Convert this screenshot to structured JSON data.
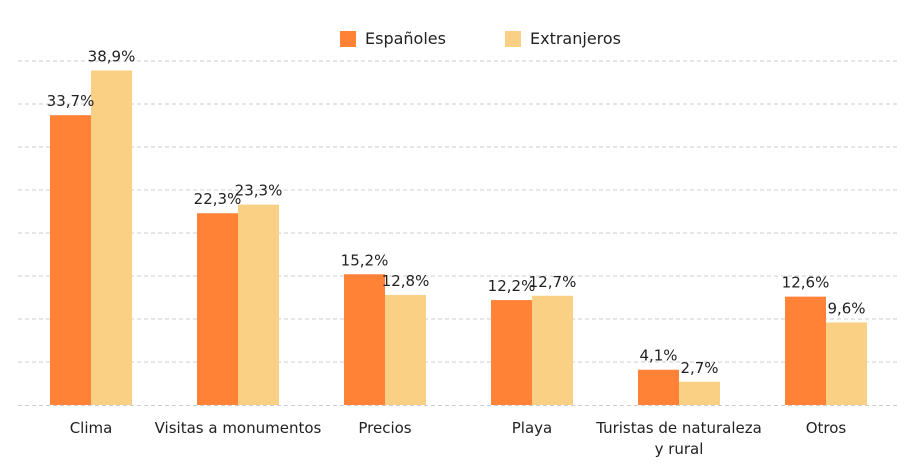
{
  "chart_data": {
    "type": "bar",
    "categories": [
      "Clima",
      "Visitas a monumentos",
      "Precios",
      "Playa",
      "Turistas de naturaleza y rural",
      "Otros"
    ],
    "category_lines": [
      [
        "Clima"
      ],
      [
        "Visitas a monumentos"
      ],
      [
        "Precios"
      ],
      [
        "Playa"
      ],
      [
        "Turistas de naturaleza",
        "y rural"
      ],
      [
        "Otros"
      ]
    ],
    "series": [
      {
        "name": "Españoles",
        "values": [
          33.7,
          22.3,
          15.2,
          12.2,
          4.1,
          12.6
        ],
        "labels": [
          "33,7%",
          "22,3%",
          "15,2%",
          "12,2%",
          "4,1%",
          "12,6%"
        ],
        "color": "#FF8237"
      },
      {
        "name": "Extranjeros",
        "values": [
          38.9,
          23.3,
          12.8,
          12.7,
          2.7,
          9.6
        ],
        "labels": [
          "38,9%",
          "23,3%",
          "12,8%",
          "12,7%",
          "2,7%",
          "9,6%"
        ],
        "color": "#FAD085"
      }
    ],
    "legend_position": "top-center",
    "ylim": [
      0,
      40
    ],
    "grid": true,
    "grid_color": "#CCCCCC",
    "title": "",
    "xlabel": "",
    "ylabel": ""
  }
}
